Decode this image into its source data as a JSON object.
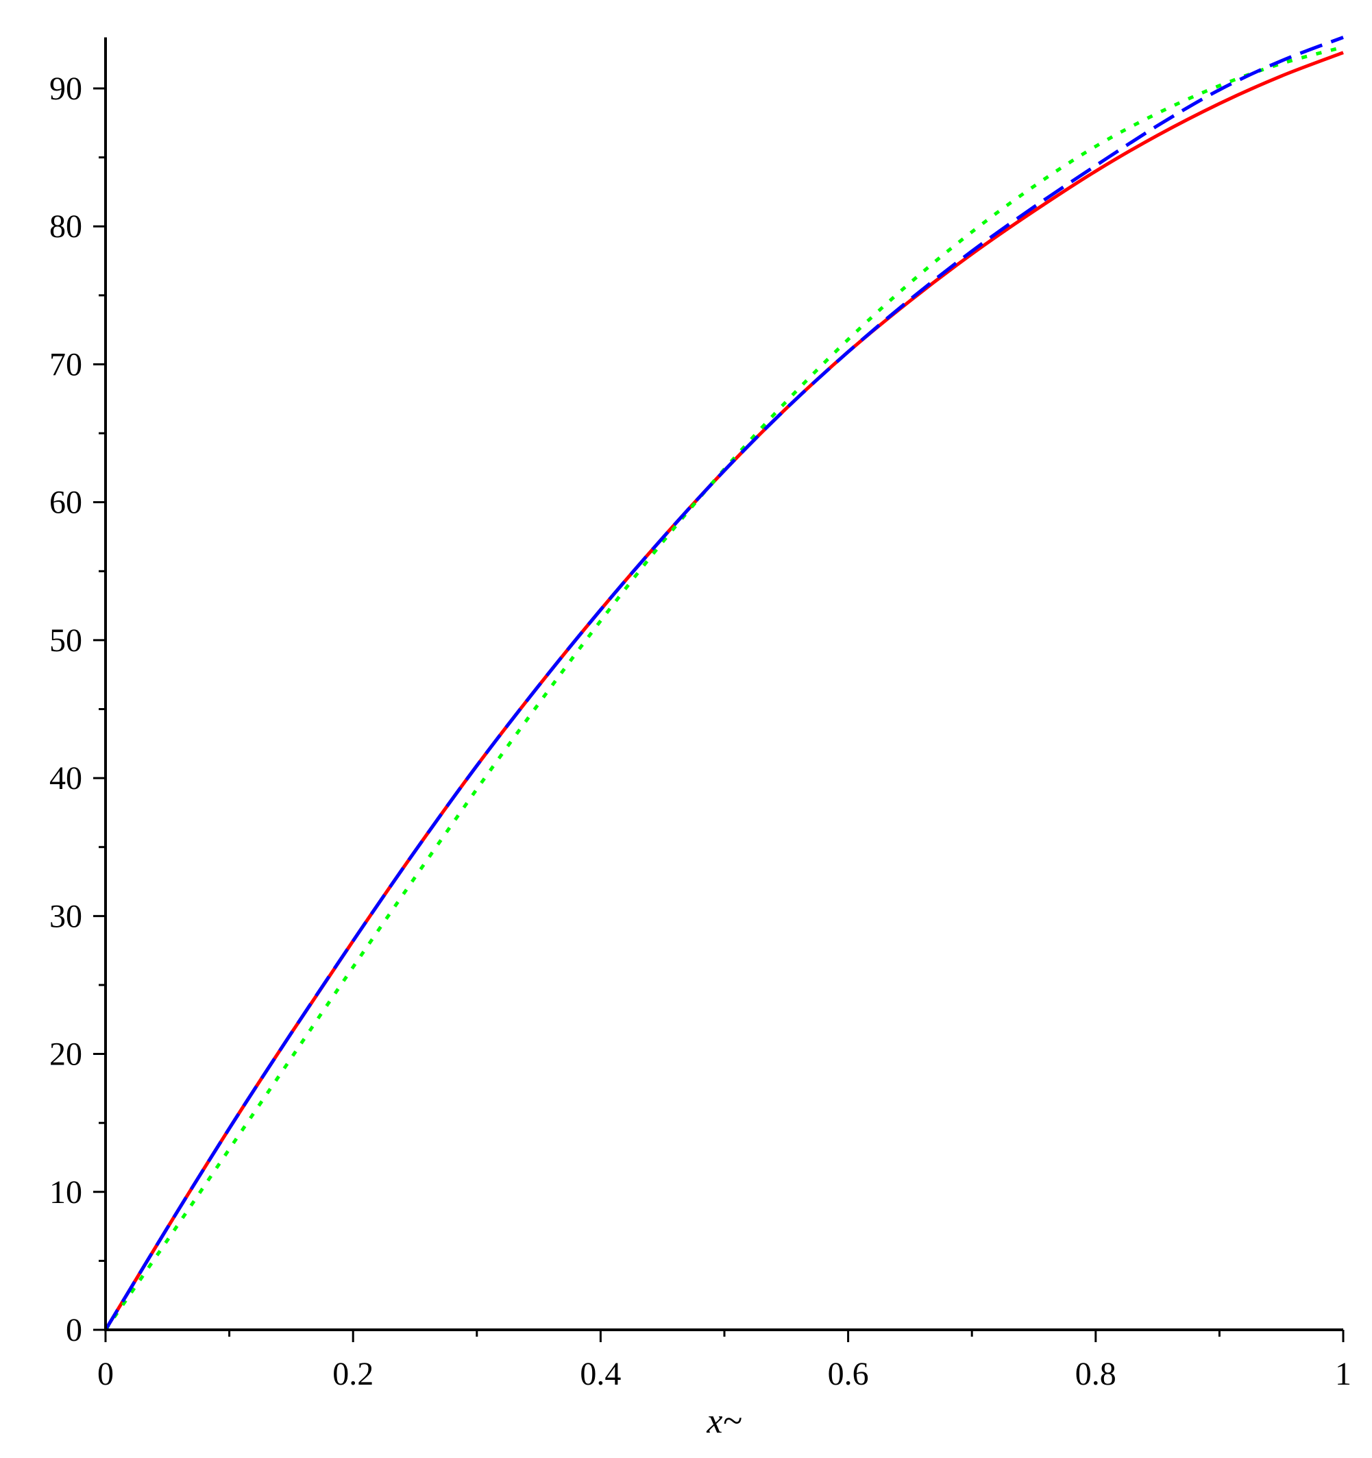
{
  "chart_data": {
    "type": "line",
    "title": "",
    "xlabel": "x~",
    "ylabel": "",
    "xlim": [
      0,
      1
    ],
    "ylim": [
      0,
      90
    ],
    "y_axis_top": 93.7,
    "x_ticks": [
      0,
      0.2,
      0.4,
      0.6,
      0.8,
      1
    ],
    "x_tick_labels": [
      "0",
      "0.2",
      "0.4",
      "0.6",
      "0.8",
      "1"
    ],
    "x_minor_ticks": [
      0.1,
      0.3,
      0.5,
      0.7,
      0.9
    ],
    "y_ticks": [
      0,
      10,
      20,
      30,
      40,
      50,
      60,
      70,
      80,
      90
    ],
    "y_tick_labels": [
      "0",
      "10",
      "20",
      "30",
      "40",
      "50",
      "60",
      "70",
      "80",
      "90"
    ],
    "y_minor_ticks": [
      5,
      15,
      25,
      35,
      45,
      55,
      65,
      75,
      85
    ],
    "grid": false,
    "legend": "none",
    "series": [
      {
        "color": "#ff0000",
        "style": "solid",
        "x": [
          0,
          0.05,
          0.1,
          0.15,
          0.2,
          0.25,
          0.3,
          0.35,
          0.4,
          0.45,
          0.5,
          0.55,
          0.6,
          0.65,
          0.7,
          0.75,
          0.8,
          0.85,
          0.9,
          0.95,
          1.0
        ],
        "y": [
          0,
          7.4,
          14.6,
          21.5,
          28.2,
          34.7,
          40.9,
          46.7,
          52.2,
          57.4,
          62.3,
          66.8,
          70.9,
          74.6,
          78.0,
          81.1,
          84.0,
          86.6,
          88.9,
          90.9,
          92.6
        ]
      },
      {
        "color": "#0000ff",
        "style": "dashed",
        "x": [
          0,
          0.05,
          0.1,
          0.15,
          0.2,
          0.25,
          0.3,
          0.35,
          0.4,
          0.45,
          0.5,
          0.55,
          0.6,
          0.65,
          0.7,
          0.75,
          0.8,
          0.85,
          0.9,
          0.95,
          1.0
        ],
        "y": [
          0,
          7.4,
          14.6,
          21.5,
          28.2,
          34.7,
          40.9,
          46.7,
          52.2,
          57.4,
          62.3,
          66.8,
          70.9,
          74.7,
          78.2,
          81.4,
          84.4,
          87.3,
          89.9,
          92.0,
          93.7
        ]
      },
      {
        "color": "#00ff00",
        "style": "dotted",
        "x": [
          0,
          0.05,
          0.1,
          0.15,
          0.2,
          0.25,
          0.3,
          0.35,
          0.4,
          0.45,
          0.5,
          0.55,
          0.6,
          0.65,
          0.7,
          0.75,
          0.8,
          0.85,
          0.9,
          0.95,
          1.0
        ],
        "y": [
          0,
          6.5,
          13.1,
          19.7,
          26.3,
          32.8,
          39.2,
          45.4,
          51.4,
          57.1,
          62.4,
          67.3,
          71.8,
          75.9,
          79.6,
          82.9,
          85.8,
          88.2,
          90.2,
          91.8,
          93.0
        ]
      }
    ]
  }
}
